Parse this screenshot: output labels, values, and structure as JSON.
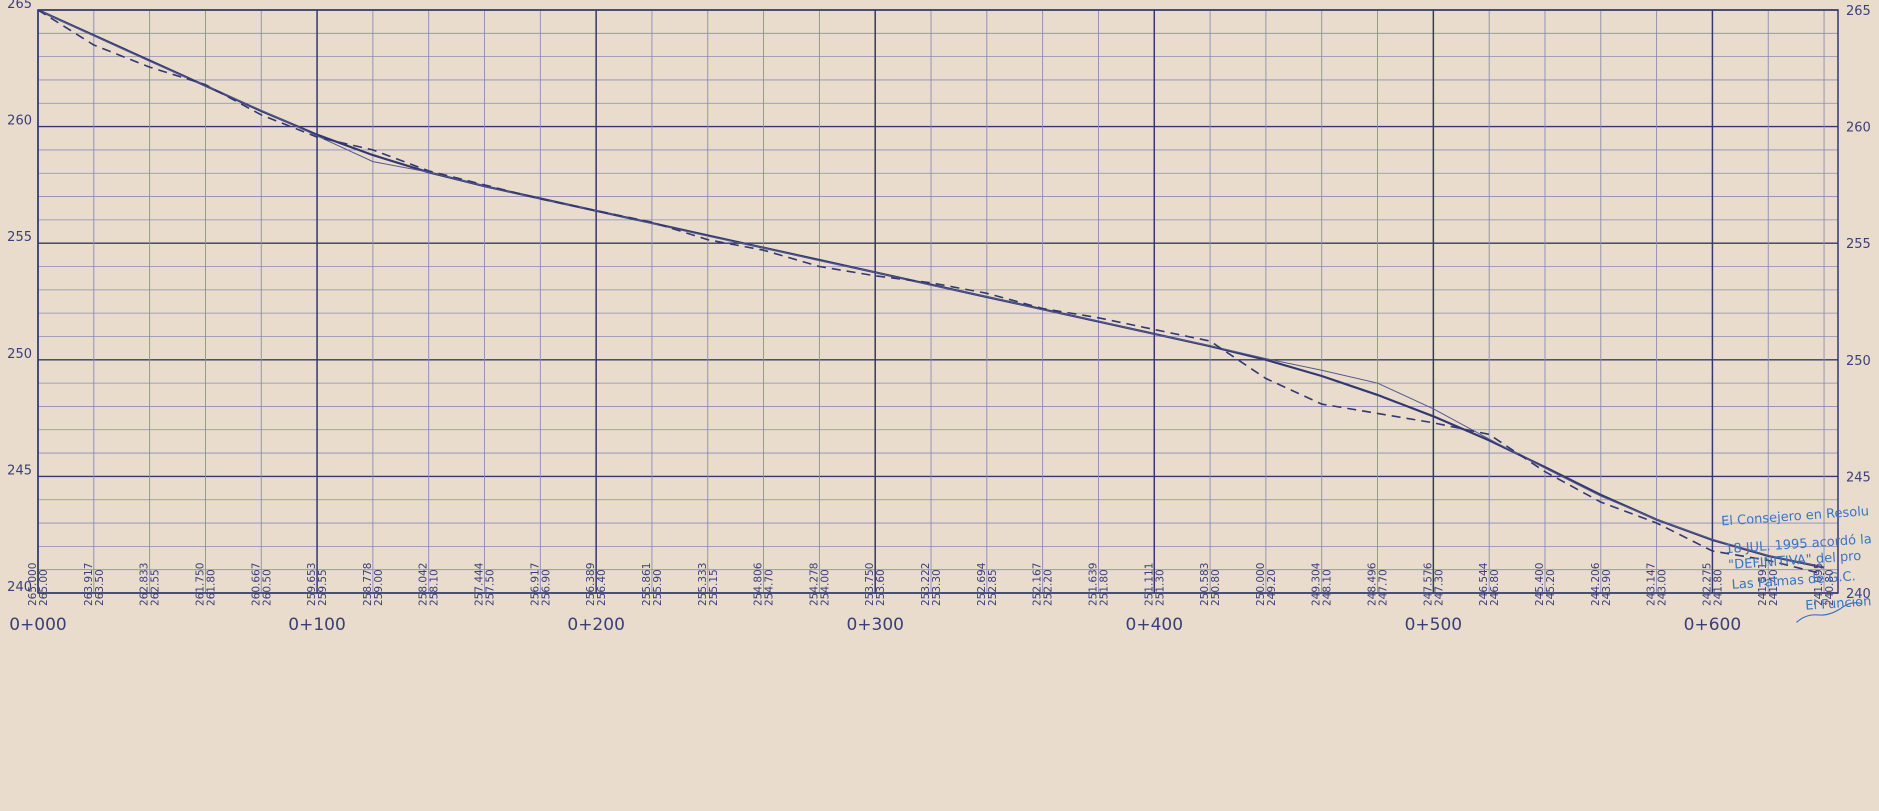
{
  "chart_data": {
    "type": "line",
    "title": "",
    "xlabel": "",
    "ylabel": "",
    "x_unit": "m",
    "xlim": [
      0,
      645
    ],
    "ylim": [
      240,
      265
    ],
    "y_ticks": [
      240,
      245,
      250,
      255,
      260,
      265
    ],
    "x_ticks": [
      0,
      100,
      200,
      300,
      400,
      500,
      600
    ],
    "x_tick_labels": [
      "0+000",
      "0+100",
      "0+200",
      "0+300",
      "0+400",
      "0+500",
      "0+600"
    ],
    "grid": "on",
    "x": [
      0,
      20,
      40,
      60,
      80,
      100,
      120,
      140,
      160,
      180,
      200,
      220,
      240,
      260,
      280,
      300,
      320,
      340,
      360,
      380,
      400,
      420,
      440,
      460,
      480,
      500,
      520,
      540,
      560,
      580,
      600,
      620,
      640
    ],
    "series": [
      {
        "name": "",
        "style": "solid-thick",
        "values": [
          265.0,
          263.917,
          262.833,
          261.75,
          260.667,
          259.653,
          258.778,
          258.042,
          257.444,
          256.917,
          256.389,
          255.861,
          255.333,
          254.806,
          254.278,
          253.75,
          253.222,
          252.694,
          252.167,
          251.639,
          251.111,
          250.583,
          250.0,
          249.304,
          248.496,
          247.576,
          246.544,
          245.4,
          244.206,
          243.147,
          242.275,
          241.591,
          241.095
        ]
      },
      {
        "name": "",
        "style": "solid-thin",
        "values": [
          265.0,
          263.9,
          262.8,
          261.75,
          260.7,
          259.6,
          258.5,
          258.05,
          257.45,
          256.9,
          256.4,
          255.85,
          255.3,
          254.8,
          254.25,
          253.75,
          253.2,
          252.7,
          252.15,
          251.65,
          251.1,
          250.6,
          250.05,
          249.55,
          249.0,
          247.9,
          246.6,
          245.35,
          244.15,
          243.15,
          242.3,
          241.6,
          241.1
        ]
      },
      {
        "name": "",
        "style": "dashed",
        "values": [
          265.0,
          263.5,
          262.55,
          261.8,
          260.5,
          259.55,
          259.0,
          258.1,
          257.5,
          256.9,
          256.4,
          255.9,
          255.15,
          254.7,
          254.0,
          253.6,
          253.3,
          252.85,
          252.2,
          251.8,
          251.3,
          250.8,
          249.2,
          248.1,
          247.7,
          247.3,
          246.8,
          245.2,
          243.9,
          243.0,
          241.8,
          241.4,
          240.8
        ]
      }
    ],
    "station_labels": [
      {
        "upper": "265.000",
        "lower": "265.00"
      },
      {
        "upper": "263.917",
        "lower": "263.50"
      },
      {
        "upper": "262.833",
        "lower": "262.55"
      },
      {
        "upper": "261.750",
        "lower": "261.80"
      },
      {
        "upper": "260.667",
        "lower": "260.50"
      },
      {
        "upper": "259.653",
        "lower": "259.55"
      },
      {
        "upper": "258.778",
        "lower": "259.00"
      },
      {
        "upper": "258.042",
        "lower": "258.10"
      },
      {
        "upper": "257.444",
        "lower": "257.50"
      },
      {
        "upper": "256.917",
        "lower": "256.90"
      },
      {
        "upper": "256.389",
        "lower": "256.40"
      },
      {
        "upper": "255.861",
        "lower": "255.90"
      },
      {
        "upper": "255.333",
        "lower": "255.15"
      },
      {
        "upper": "254.806",
        "lower": "254.70"
      },
      {
        "upper": "254.278",
        "lower": "254.00"
      },
      {
        "upper": "253.750",
        "lower": "253.60"
      },
      {
        "upper": "253.222",
        "lower": "253.30"
      },
      {
        "upper": "252.694",
        "lower": "252.85"
      },
      {
        "upper": "252.167",
        "lower": "252.20"
      },
      {
        "upper": "251.639",
        "lower": "251.80"
      },
      {
        "upper": "251.111",
        "lower": "251.30"
      },
      {
        "upper": "250.583",
        "lower": "250.80"
      },
      {
        "upper": "250.000",
        "lower": "249.20"
      },
      {
        "upper": "249.304",
        "lower": "248.10"
      },
      {
        "upper": "248.496",
        "lower": "247.70"
      },
      {
        "upper": "247.576",
        "lower": "247.30"
      },
      {
        "upper": "246.544",
        "lower": "246.80"
      },
      {
        "upper": "245.400",
        "lower": "245.20"
      },
      {
        "upper": "244.206",
        "lower": "243.90"
      },
      {
        "upper": "243.147",
        "lower": "243.00"
      },
      {
        "upper": "242.275",
        "lower": "241.80"
      },
      {
        "upper": "241.591",
        "lower": "241.40"
      },
      {
        "upper": "241.095",
        "lower": "240.80"
      }
    ],
    "colors": {
      "paper": "#e9dccd",
      "ink": "#34386f",
      "grid_minor": "#8a8cb2",
      "stamp": "#3a74c6"
    }
  },
  "stamp": {
    "line1": "El Consejero en Resolu",
    "line2": "18 JUL. 1995   acordó la",
    "line3": "\"DEFINITIVA\" del pro",
    "line4": "Las Palmas de G.C.",
    "line5": "El Funcion"
  }
}
